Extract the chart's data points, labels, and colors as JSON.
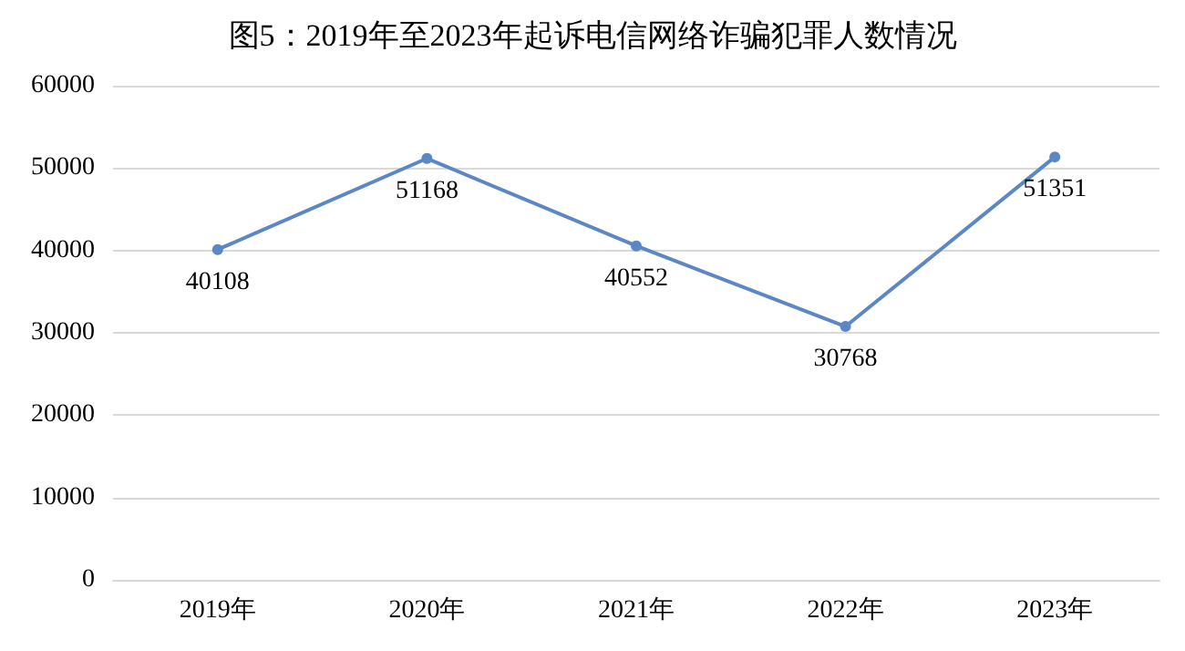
{
  "chart_data": {
    "type": "line",
    "title": "图5：2019年至2023年起诉电信网络诈骗犯罪人数情况",
    "categories": [
      "2019年",
      "2020年",
      "2021年",
      "2022年",
      "2023年"
    ],
    "series": [
      {
        "color": "#5b87c5",
        "values": [
          40108,
          51168,
          40552,
          30768,
          51351
        ]
      }
    ],
    "ylim": [
      0,
      60000
    ],
    "yticks": [
      0,
      10000,
      20000,
      30000,
      40000,
      50000,
      60000
    ],
    "grid": "y",
    "data_labels": true,
    "marker": "circle",
    "line_style": "solid"
  }
}
